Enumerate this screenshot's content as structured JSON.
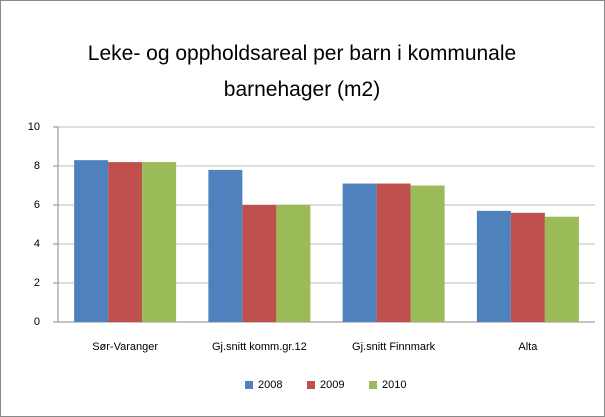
{
  "chart_data": {
    "type": "bar",
    "title": "Leke- og oppholdsareal per barn i kommunale barnehager (m2)",
    "categories": [
      "Sør-Varanger",
      "Gj.snitt komm.gr.12",
      "Gj.snitt Finnmark",
      "Alta"
    ],
    "series": [
      {
        "name": "2008",
        "color": "#4f81bd",
        "values": [
          8.3,
          7.8,
          7.1,
          5.7
        ]
      },
      {
        "name": "2009",
        "color": "#c0504d",
        "values": [
          8.2,
          6.0,
          7.1,
          5.6
        ]
      },
      {
        "name": "2010",
        "color": "#9bbb59",
        "values": [
          8.2,
          6.0,
          7.0,
          5.4
        ]
      }
    ],
    "ylim": [
      0,
      10
    ],
    "yticks": [
      0,
      2,
      4,
      6,
      8,
      10
    ],
    "grid": true,
    "legend": "bottom"
  }
}
